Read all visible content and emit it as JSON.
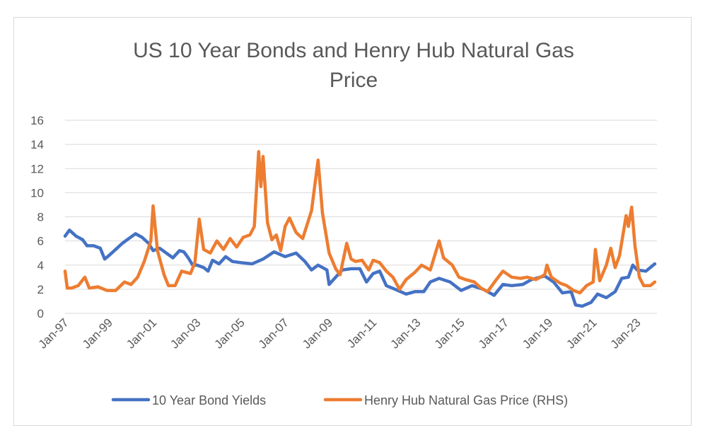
{
  "chart_data": {
    "type": "line",
    "title_lines": [
      "US 10 Year Bonds and Henry Hub Natural Gas",
      "Price"
    ],
    "xlabel": "",
    "ylabel": "",
    "x_range": [
      1997.0,
      2023.9
    ],
    "ylim": [
      0,
      16
    ],
    "y_ticks": [
      0,
      2,
      4,
      6,
      8,
      10,
      12,
      14,
      16
    ],
    "x_ticks": [
      {
        "label": "Jan-97",
        "x": 1997.0
      },
      {
        "label": "Jan-99",
        "x": 1999.0
      },
      {
        "label": "Jan-01",
        "x": 2001.0
      },
      {
        "label": "Jan-03",
        "x": 2003.0
      },
      {
        "label": "Jan-05",
        "x": 2005.0
      },
      {
        "label": "Jan-07",
        "x": 2007.0
      },
      {
        "label": "Jan-09",
        "x": 2009.0
      },
      {
        "label": "Jan-11",
        "x": 2011.0
      },
      {
        "label": "Jan-13",
        "x": 2013.0
      },
      {
        "label": "Jan-15",
        "x": 2015.0
      },
      {
        "label": "Jan-17",
        "x": 2017.0
      },
      {
        "label": "Jan-19",
        "x": 2019.0
      },
      {
        "label": "Jan-21",
        "x": 2021.0
      },
      {
        "label": "Jan-23",
        "x": 2023.0
      }
    ],
    "grid": "horizontal",
    "legend_position": "bottom",
    "series": [
      {
        "name": "10 Year Bond Yields",
        "color": "#4472C4",
        "points": [
          [
            1997.0,
            6.4
          ],
          [
            1997.2,
            6.9
          ],
          [
            1997.5,
            6.4
          ],
          [
            1997.8,
            6.1
          ],
          [
            1998.0,
            5.6
          ],
          [
            1998.3,
            5.6
          ],
          [
            1998.6,
            5.4
          ],
          [
            1998.8,
            4.5
          ],
          [
            1999.0,
            4.8
          ],
          [
            1999.3,
            5.3
          ],
          [
            1999.6,
            5.8
          ],
          [
            1999.9,
            6.2
          ],
          [
            2000.2,
            6.6
          ],
          [
            2000.5,
            6.3
          ],
          [
            2000.8,
            5.8
          ],
          [
            2001.0,
            5.2
          ],
          [
            2001.3,
            5.4
          ],
          [
            2001.6,
            5.0
          ],
          [
            2001.9,
            4.6
          ],
          [
            2002.2,
            5.2
          ],
          [
            2002.4,
            5.1
          ],
          [
            2002.6,
            4.6
          ],
          [
            2002.8,
            4.0
          ],
          [
            2003.0,
            4.0
          ],
          [
            2003.3,
            3.8
          ],
          [
            2003.5,
            3.5
          ],
          [
            2003.7,
            4.4
          ],
          [
            2004.0,
            4.1
          ],
          [
            2004.3,
            4.7
          ],
          [
            2004.6,
            4.3
          ],
          [
            2005.0,
            4.2
          ],
          [
            2005.5,
            4.1
          ],
          [
            2006.0,
            4.5
          ],
          [
            2006.5,
            5.1
          ],
          [
            2007.0,
            4.7
          ],
          [
            2007.5,
            5.0
          ],
          [
            2007.9,
            4.3
          ],
          [
            2008.2,
            3.6
          ],
          [
            2008.5,
            4.0
          ],
          [
            2008.9,
            3.6
          ],
          [
            2009.0,
            2.4
          ],
          [
            2009.3,
            3.0
          ],
          [
            2009.6,
            3.6
          ],
          [
            2010.0,
            3.7
          ],
          [
            2010.4,
            3.7
          ],
          [
            2010.7,
            2.6
          ],
          [
            2011.0,
            3.3
          ],
          [
            2011.3,
            3.5
          ],
          [
            2011.6,
            2.3
          ],
          [
            2012.0,
            2.0
          ],
          [
            2012.5,
            1.6
          ],
          [
            2012.9,
            1.8
          ],
          [
            2013.3,
            1.8
          ],
          [
            2013.6,
            2.6
          ],
          [
            2014.0,
            2.9
          ],
          [
            2014.5,
            2.6
          ],
          [
            2015.0,
            1.9
          ],
          [
            2015.5,
            2.3
          ],
          [
            2016.0,
            2.0
          ],
          [
            2016.5,
            1.5
          ],
          [
            2016.9,
            2.4
          ],
          [
            2017.3,
            2.3
          ],
          [
            2017.8,
            2.4
          ],
          [
            2018.2,
            2.8
          ],
          [
            2018.8,
            3.1
          ],
          [
            2019.2,
            2.6
          ],
          [
            2019.6,
            1.7
          ],
          [
            2020.0,
            1.8
          ],
          [
            2020.2,
            0.7
          ],
          [
            2020.5,
            0.6
          ],
          [
            2020.9,
            0.9
          ],
          [
            2021.2,
            1.6
          ],
          [
            2021.6,
            1.3
          ],
          [
            2022.0,
            1.8
          ],
          [
            2022.3,
            2.9
          ],
          [
            2022.6,
            3.0
          ],
          [
            2022.8,
            4.0
          ],
          [
            2023.0,
            3.6
          ],
          [
            2023.4,
            3.5
          ],
          [
            2023.8,
            4.1
          ]
        ]
      },
      {
        "name": "Henry Hub Natural Gas Price (RHS)",
        "color": "#ED7D31",
        "points": [
          [
            1997.0,
            3.5
          ],
          [
            1997.1,
            2.1
          ],
          [
            1997.3,
            2.1
          ],
          [
            1997.6,
            2.3
          ],
          [
            1997.9,
            3.0
          ],
          [
            1998.1,
            2.1
          ],
          [
            1998.5,
            2.2
          ],
          [
            1998.9,
            1.9
          ],
          [
            1999.3,
            1.9
          ],
          [
            1999.7,
            2.6
          ],
          [
            2000.0,
            2.4
          ],
          [
            2000.3,
            3.0
          ],
          [
            2000.6,
            4.3
          ],
          [
            2000.9,
            6.0
          ],
          [
            2001.0,
            8.9
          ],
          [
            2001.2,
            5.2
          ],
          [
            2001.5,
            3.2
          ],
          [
            2001.7,
            2.3
          ],
          [
            2002.0,
            2.3
          ],
          [
            2002.3,
            3.5
          ],
          [
            2002.7,
            3.3
          ],
          [
            2002.9,
            4.2
          ],
          [
            2003.1,
            7.8
          ],
          [
            2003.3,
            5.3
          ],
          [
            2003.6,
            5.0
          ],
          [
            2003.9,
            6.0
          ],
          [
            2004.2,
            5.3
          ],
          [
            2004.5,
            6.2
          ],
          [
            2004.8,
            5.5
          ],
          [
            2005.1,
            6.3
          ],
          [
            2005.4,
            6.5
          ],
          [
            2005.6,
            7.2
          ],
          [
            2005.8,
            13.4
          ],
          [
            2005.9,
            10.5
          ],
          [
            2006.0,
            13.0
          ],
          [
            2006.2,
            7.5
          ],
          [
            2006.4,
            6.1
          ],
          [
            2006.6,
            6.5
          ],
          [
            2006.8,
            5.2
          ],
          [
            2007.0,
            7.2
          ],
          [
            2007.2,
            7.9
          ],
          [
            2007.5,
            6.7
          ],
          [
            2007.8,
            6.2
          ],
          [
            2008.2,
            8.5
          ],
          [
            2008.5,
            12.7
          ],
          [
            2008.7,
            8.3
          ],
          [
            2009.0,
            5.0
          ],
          [
            2009.3,
            3.7
          ],
          [
            2009.5,
            3.2
          ],
          [
            2009.8,
            5.8
          ],
          [
            2010.0,
            4.5
          ],
          [
            2010.2,
            4.3
          ],
          [
            2010.5,
            4.4
          ],
          [
            2010.8,
            3.6
          ],
          [
            2011.0,
            4.4
          ],
          [
            2011.3,
            4.2
          ],
          [
            2011.6,
            3.5
          ],
          [
            2011.9,
            3.0
          ],
          [
            2012.2,
            2.0
          ],
          [
            2012.5,
            2.8
          ],
          [
            2012.9,
            3.4
          ],
          [
            2013.2,
            4.0
          ],
          [
            2013.6,
            3.6
          ],
          [
            2014.0,
            6.0
          ],
          [
            2014.2,
            4.6
          ],
          [
            2014.6,
            4.0
          ],
          [
            2014.9,
            3.0
          ],
          [
            2015.2,
            2.8
          ],
          [
            2015.6,
            2.6
          ],
          [
            2015.9,
            2.1
          ],
          [
            2016.2,
            1.8
          ],
          [
            2016.6,
            2.8
          ],
          [
            2016.9,
            3.5
          ],
          [
            2017.3,
            3.0
          ],
          [
            2017.7,
            2.9
          ],
          [
            2018.0,
            3.0
          ],
          [
            2018.4,
            2.8
          ],
          [
            2018.8,
            3.2
          ],
          [
            2018.9,
            4.0
          ],
          [
            2019.1,
            3.0
          ],
          [
            2019.5,
            2.5
          ],
          [
            2019.8,
            2.3
          ],
          [
            2020.1,
            1.9
          ],
          [
            2020.4,
            1.7
          ],
          [
            2020.7,
            2.3
          ],
          [
            2021.0,
            2.6
          ],
          [
            2021.1,
            5.3
          ],
          [
            2021.3,
            2.7
          ],
          [
            2021.6,
            4.0
          ],
          [
            2021.8,
            5.4
          ],
          [
            2022.0,
            3.8
          ],
          [
            2022.2,
            4.8
          ],
          [
            2022.5,
            8.1
          ],
          [
            2022.6,
            7.2
          ],
          [
            2022.75,
            8.8
          ],
          [
            2022.9,
            5.6
          ],
          [
            2023.1,
            3.0
          ],
          [
            2023.3,
            2.3
          ],
          [
            2023.6,
            2.3
          ],
          [
            2023.8,
            2.6
          ]
        ]
      }
    ]
  }
}
